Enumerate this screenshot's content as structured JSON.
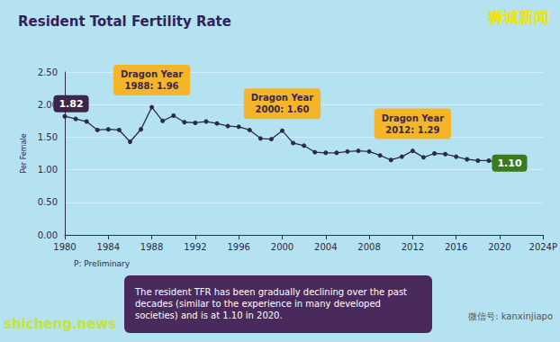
{
  "chart_data": {
    "type": "line",
    "title": "Resident Total Fertility Rate",
    "ylabel": "Per Female",
    "x": [
      1980,
      1981,
      1982,
      1983,
      1984,
      1985,
      1986,
      1987,
      1988,
      1989,
      1990,
      1991,
      1992,
      1993,
      1994,
      1995,
      1996,
      1997,
      1998,
      1999,
      2000,
      2001,
      2002,
      2003,
      2004,
      2005,
      2006,
      2007,
      2008,
      2009,
      2010,
      2011,
      2012,
      2013,
      2014,
      2015,
      2016,
      2017,
      2018,
      2019,
      2020
    ],
    "values": [
      1.82,
      1.78,
      1.74,
      1.61,
      1.62,
      1.61,
      1.43,
      1.62,
      1.96,
      1.75,
      1.83,
      1.73,
      1.72,
      1.74,
      1.71,
      1.67,
      1.66,
      1.61,
      1.48,
      1.47,
      1.6,
      1.41,
      1.37,
      1.27,
      1.26,
      1.26,
      1.28,
      1.29,
      1.28,
      1.22,
      1.15,
      1.2,
      1.29,
      1.19,
      1.25,
      1.24,
      1.2,
      1.16,
      1.14,
      1.14,
      1.1
    ],
    "color": "#2b2a4c",
    "marker": "circle",
    "xlim": [
      1980,
      2024
    ],
    "xticks": [
      1980,
      1984,
      1988,
      1992,
      1996,
      2000,
      2004,
      2008,
      2012,
      2016,
      2020,
      {
        "value": 2024,
        "label": "2024P"
      }
    ],
    "ylim": [
      0,
      2.5
    ],
    "yticks": [
      {
        "value": 0,
        "label": "0.00"
      },
      {
        "value": 0.5,
        "label": "0.50"
      },
      {
        "value": 1,
        "label": "1.00"
      },
      {
        "value": 1.5,
        "label": "1.50"
      },
      {
        "value": 2,
        "label": "2.00"
      },
      {
        "value": 2.5,
        "label": "2.50"
      }
    ],
    "grid": true,
    "annotations": [
      {
        "text": "1.82",
        "x": 1980,
        "y": 1.82,
        "color": "#3d2548"
      },
      {
        "text": "Dragon Year\n1988: 1.96",
        "x": 1988,
        "y": 1.96,
        "color": "#f5b52a"
      },
      {
        "text": "Dragon Year\n2000: 1.60",
        "x": 2000,
        "y": 1.6,
        "color": "#f5b52a"
      },
      {
        "text": "Dragon Year\n2012: 1.29",
        "x": 2012,
        "y": 1.29,
        "color": "#f5b52a"
      },
      {
        "text": "1.10",
        "x": 2020,
        "y": 1.1,
        "color": "#3b7a1e"
      }
    ],
    "note": "P: Preliminary",
    "caption": "The resident TFR has been gradually declining over the past decades (similar to the experience in many developed societies) and is at 1.10 in 2020.",
    "watermarks": [
      "狮城新闻",
      "shicheng.news",
      "微信号: kanxinjiapo"
    ]
  }
}
